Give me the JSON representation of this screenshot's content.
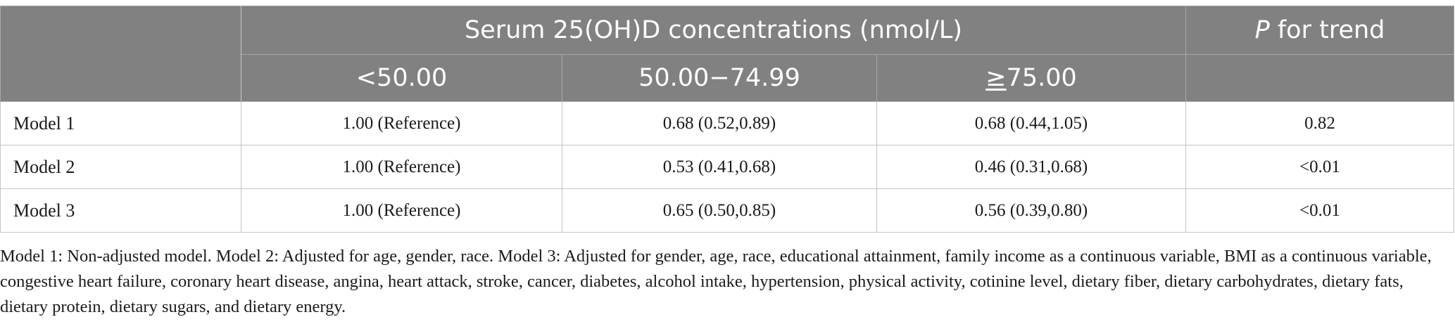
{
  "table": {
    "header": {
      "group_label": "Serum 25(OH)D concentrations (nmol/L)",
      "trend_label_italic": "P",
      "trend_label_rest": " for trend",
      "sub": {
        "col1": "<50.00",
        "col2": "50.00−74.99",
        "col3_symbol": "≥",
        "col3_value": "75.00"
      }
    },
    "rows": [
      {
        "label": "Model 1",
        "c1": "1.00 (Reference)",
        "c2": "0.68 (0.52,0.89)",
        "c3": "0.68 (0.44,1.05)",
        "trend": "0.82"
      },
      {
        "label": "Model 2",
        "c1": "1.00 (Reference)",
        "c2": "0.53 (0.41,0.68)",
        "c3": "0.46 (0.31,0.68)",
        "trend": "<0.01"
      },
      {
        "label": "Model 3",
        "c1": "1.00 (Reference)",
        "c2": "0.65 (0.50,0.85)",
        "c3": "0.56 (0.39,0.80)",
        "trend": "<0.01"
      }
    ]
  },
  "footnote": "Model 1: Non-adjusted model. Model 2: Adjusted for age, gender, race. Model 3: Adjusted for gender, age, race, educational attainment, family income as a continuous variable, BMI as a continuous variable, congestive heart failure, coronary heart disease, angina, heart attack, stroke, cancer, diabetes, alcohol intake, hypertension, physical activity, cotinine level, dietary fiber, dietary carbohydrates, dietary fats, dietary protein, dietary sugars, and dietary energy."
}
